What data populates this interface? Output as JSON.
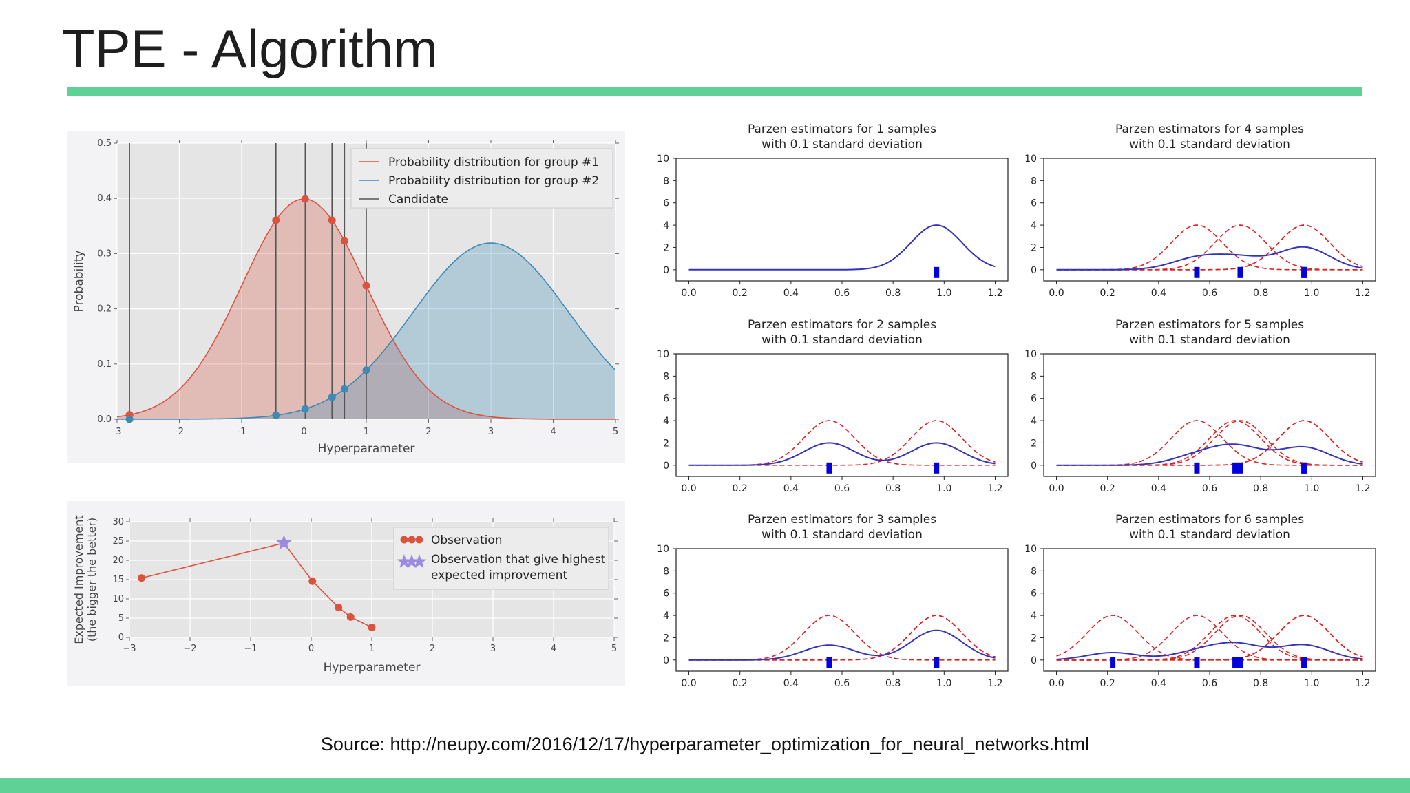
{
  "slide": {
    "title": "TPE - Algorithm",
    "source": "Source: http://neupy.com/2016/12/17/hyperparameter_optimization_for_neural_networks.html",
    "accent": "#5fd197"
  },
  "chart_data": [
    {
      "id": "distributions",
      "type": "area",
      "xlabel": "Hyperparameter",
      "ylabel": "Probability",
      "xlim": [
        -3,
        5
      ],
      "ylim": [
        0,
        0.5
      ],
      "xticks": [
        "-3",
        "-2",
        "-1",
        "0",
        "1",
        "2",
        "3",
        "4",
        "5"
      ],
      "yticks": [
        "0.0",
        "0.1",
        "0.2",
        "0.3",
        "0.4",
        "0.5"
      ],
      "series": [
        {
          "name": "Probability distribution for group #1",
          "mean": 0,
          "std": 1,
          "color": "#d9533f"
        },
        {
          "name": "Probability distribution for group #2",
          "mean": 3,
          "std": 1.25,
          "color": "#3f8ab5"
        },
        {
          "name": "Candidate",
          "color": "#555555"
        }
      ],
      "candidates": [
        -2.8,
        -0.45,
        0.02,
        0.45,
        0.65,
        1.0
      ]
    },
    {
      "id": "expected-improvement",
      "type": "line",
      "xlabel": "Hyperparameter",
      "ylabel": "Expected Improvement\n(the bigger the better)",
      "ylabel_lines": [
        "Expected Improvement",
        "(the bigger the better)"
      ],
      "xlim": [
        -3,
        5
      ],
      "ylim": [
        0,
        30
      ],
      "xticks": [
        "−3",
        "−2",
        "−1",
        "0",
        "1",
        "2",
        "3",
        "4",
        "5"
      ],
      "yticks": [
        "0",
        "5",
        "10",
        "15",
        "20",
        "25",
        "30"
      ],
      "x": [
        -2.8,
        -0.45,
        0.02,
        0.45,
        0.65,
        1.0
      ],
      "y": [
        15.4,
        24.5,
        14.6,
        7.8,
        5.3,
        2.6
      ],
      "best_index": 1,
      "legend": [
        "Observation",
        "Observation that give highest",
        "expected improvement"
      ],
      "colors": {
        "line": "#d9533f",
        "star": "#9a8ae0"
      }
    },
    {
      "id": "parzen-grid",
      "type": "line",
      "std": 0.1,
      "xlim": [
        -0.05,
        1.25
      ],
      "ylim": [
        -1,
        10
      ],
      "xticks": [
        "0.0",
        "0.2",
        "0.4",
        "0.6",
        "0.8",
        "1.0",
        "1.2"
      ],
      "yticks": [
        "0",
        "2",
        "4",
        "6",
        "8",
        "10"
      ],
      "colors": {
        "sum": "#3333bb",
        "kernel": "#dd2222",
        "sample": "#0000dd"
      },
      "panels": [
        {
          "title": [
            "Parzen estimators for 1 samples",
            "with 0.1 standard deviation"
          ],
          "samples": [
            0.97
          ]
        },
        {
          "title": [
            "Parzen estimators for 4 samples",
            "with 0.1 standard deviation"
          ],
          "samples": [
            0.55,
            0.72,
            0.97,
            0.97
          ]
        },
        {
          "title": [
            "Parzen estimators for 2 samples",
            "with 0.1 standard deviation"
          ],
          "samples": [
            0.55,
            0.97
          ]
        },
        {
          "title": [
            "Parzen estimators for 5 samples",
            "with 0.1 standard deviation"
          ],
          "samples": [
            0.55,
            0.7,
            0.72,
            0.97,
            0.97
          ]
        },
        {
          "title": [
            "Parzen estimators for 3 samples",
            "with 0.1 standard deviation"
          ],
          "samples": [
            0.55,
            0.97,
            0.97
          ]
        },
        {
          "title": [
            "Parzen estimators for 6 samples",
            "with 0.1 standard deviation"
          ],
          "samples": [
            0.22,
            0.55,
            0.7,
            0.72,
            0.97,
            0.97
          ]
        }
      ]
    }
  ]
}
